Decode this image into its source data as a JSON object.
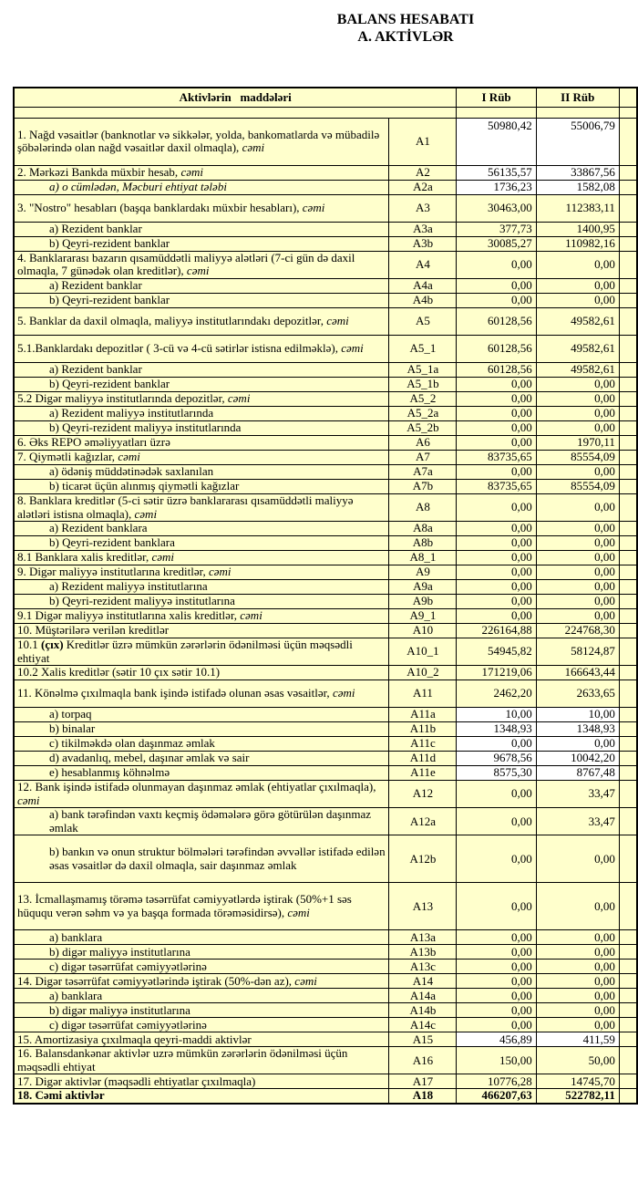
{
  "title": {
    "line1": "BALANS HESABATI",
    "line2": "A. AKTİVLƏR"
  },
  "colors": {
    "cell_bg": "#FFFFCC",
    "value_cell_white": "#FFFFFF",
    "border": "#000000",
    "text": "#000000"
  },
  "table": {
    "header": {
      "items_col": "Aktivlərin   maddələri",
      "q1": "I Rüb",
      "q2": "II Rüb"
    },
    "rows": [
      {
        "code": "A1",
        "q1": "50980,42",
        "q2": "55006,79",
        "h": "h3",
        "white": true,
        "vtop": true,
        "parts": [
          {
            "t": "1. Nağd vəsaitlər (banknotlar və sikkələr, yolda, bankomatlarda və mübadilə şöbələrində olan nağd vəsaitlər daxil olmaqla), "
          },
          {
            "t": "cəmi",
            "s": "i"
          }
        ]
      },
      {
        "code": "A2",
        "q1": "56135,57",
        "q2": "33867,56",
        "white": true,
        "parts": [
          {
            "t": "2. Mərkəzi Bankda müxbir hesab, "
          },
          {
            "t": "cəmi",
            "s": "i"
          }
        ]
      },
      {
        "code": "A2a",
        "q1": "1736,23",
        "q2": "1582,08",
        "white": true,
        "indent": true,
        "parts": [
          {
            "t": "a) o cümlədən, Məcburi ehtiyat tələbi",
            "s": "i"
          }
        ]
      },
      {
        "code": "A3",
        "q1": "30463,00",
        "q2": "112383,11",
        "h": "h2",
        "parts": [
          {
            "t": "3. \"Nostro\" hesabları (başqa banklardakı müxbir hesabları), "
          },
          {
            "t": "cəmi",
            "s": "i"
          }
        ]
      },
      {
        "code": "A3a",
        "q1": "377,73",
        "q2": "1400,95",
        "indent": true,
        "parts": [
          {
            "t": "a) Rezident banklar"
          }
        ]
      },
      {
        "code": "A3b",
        "q1": "30085,27",
        "q2": "110982,16",
        "indent": true,
        "parts": [
          {
            "t": "b) Qeyri-rezident banklar"
          }
        ]
      },
      {
        "code": "A4",
        "q1": "0,00",
        "q2": "0,00",
        "h": "h2",
        "parts": [
          {
            "t": "4. Banklararası bazarın qısamüddətli maliyyə alətləri (7-ci gün də daxil olmaqla, 7 günədək olan kreditlər), "
          },
          {
            "t": "cəmi",
            "s": "i"
          }
        ]
      },
      {
        "code": "A4a",
        "q1": "0,00",
        "q2": "0,00",
        "indent": true,
        "parts": [
          {
            "t": "a) Rezident banklar"
          }
        ]
      },
      {
        "code": "A4b",
        "q1": "0,00",
        "q2": "0,00",
        "indent": true,
        "parts": [
          {
            "t": "b) Qeyri-rezident banklar"
          }
        ]
      },
      {
        "code": "A5",
        "q1": "60128,56",
        "q2": "49582,61",
        "h": "h2",
        "parts": [
          {
            "t": "5. Banklar da daxil olmaqla, maliyyə institutlarındakı depozitlər, "
          },
          {
            "t": "cəmi",
            "s": "i"
          }
        ]
      },
      {
        "code": "A5_1",
        "q1": "60128,56",
        "q2": "49582,61",
        "h": "h2",
        "parts": [
          {
            "t": "5.1.Banklardakı depozitlər ( 3-cü və 4-cü sətirlər istisna edilməklə), "
          },
          {
            "t": "cəmi",
            "s": "i"
          }
        ]
      },
      {
        "code": "A5_1a",
        "q1": "60128,56",
        "q2": "49582,61",
        "indent": true,
        "parts": [
          {
            "t": "a) Rezident banklar"
          }
        ]
      },
      {
        "code": "A5_1b",
        "q1": "0,00",
        "q2": "0,00",
        "indent": true,
        "parts": [
          {
            "t": "b) Qeyri-rezident banklar"
          }
        ]
      },
      {
        "code": "A5_2",
        "q1": "0,00",
        "q2": "0,00",
        "parts": [
          {
            "t": "5.2 Digər maliyyə institutlarında depozitlər, "
          },
          {
            "t": "cəmi",
            "s": "i"
          }
        ]
      },
      {
        "code": "A5_2a",
        "q1": "0,00",
        "q2": "0,00",
        "indent": true,
        "parts": [
          {
            "t": "a) Rezident maliyyə institutlarında"
          }
        ]
      },
      {
        "code": "A5_2b",
        "q1": "0,00",
        "q2": "0,00",
        "indent": true,
        "parts": [
          {
            "t": "b) Qeyri-rezident maliyyə institutlarında"
          }
        ]
      },
      {
        "code": "A6",
        "q1": "0,00",
        "q2": "1970,11",
        "parts": [
          {
            "t": "6. Əks REPO əməliyyatları üzrə"
          }
        ]
      },
      {
        "code": "A7",
        "q1": "83735,65",
        "q2": "85554,09",
        "parts": [
          {
            "t": "7. Qiymətli kağızlar, "
          },
          {
            "t": "cəmi",
            "s": "i"
          }
        ]
      },
      {
        "code": "A7a",
        "q1": "0,00",
        "q2": "0,00",
        "indent": true,
        "parts": [
          {
            "t": "a) ödəniş müddətinədək saxlanılan"
          }
        ]
      },
      {
        "code": "A7b",
        "q1": "83735,65",
        "q2": "85554,09",
        "indent": true,
        "parts": [
          {
            "t": "b) ticarət üçün alınmış qiymətli kağızlar"
          }
        ]
      },
      {
        "code": "A8",
        "q1": "0,00",
        "q2": "0,00",
        "h": "h2",
        "parts": [
          {
            "t": "8. Banklara kreditlər (5-ci sətir üzrə banklararası qısamüddətli maliyyə alətləri istisna olmaqla), "
          },
          {
            "t": "cəmi",
            "s": "i"
          }
        ]
      },
      {
        "code": "A8a",
        "q1": "0,00",
        "q2": "0,00",
        "indent": true,
        "parts": [
          {
            "t": "a) Rezident banklara"
          }
        ]
      },
      {
        "code": "A8b",
        "q1": "0,00",
        "q2": "0,00",
        "indent": true,
        "parts": [
          {
            "t": "b) Qeyri-rezident banklara"
          }
        ]
      },
      {
        "code": "A8_1",
        "q1": "0,00",
        "q2": "0,00",
        "parts": [
          {
            "t": "8.1 Banklara xalis kreditlər, "
          },
          {
            "t": "cəmi",
            "s": "i"
          }
        ]
      },
      {
        "code": "A9",
        "q1": "0,00",
        "q2": "0,00",
        "parts": [
          {
            "t": "9. Digər maliyyə institutlarına kreditlər, "
          },
          {
            "t": "cəmi",
            "s": "i"
          }
        ]
      },
      {
        "code": "A9a",
        "q1": "0,00",
        "q2": "0,00",
        "indent": true,
        "parts": [
          {
            "t": "a) Rezident maliyyə institutlarına"
          }
        ]
      },
      {
        "code": "A9b",
        "q1": "0,00",
        "q2": "0,00",
        "indent": true,
        "parts": [
          {
            "t": "b) Qeyri-rezident maliyyə institutlarına"
          }
        ]
      },
      {
        "code": "A9_1",
        "q1": "0,00",
        "q2": "0,00",
        "parts": [
          {
            "t": "9.1 Digər maliyyə institutlarına xalis kreditlər, "
          },
          {
            "t": "cəmi",
            "s": "i"
          }
        ]
      },
      {
        "code": "A10",
        "q1": "226164,88",
        "q2": "224768,30",
        "parts": [
          {
            "t": "10. Müştərilərə verilən kreditlər"
          }
        ]
      },
      {
        "code": "A10_1",
        "q1": "54945,82",
        "q2": "58124,87",
        "h": "h2",
        "parts": [
          {
            "t": "10.1 "
          },
          {
            "t": "(çıx)",
            "s": "b"
          },
          {
            "t": " Kreditlər üzrə mümkün zərərlərin ödənilməsi üçün məqsədli ehtiyat"
          }
        ]
      },
      {
        "code": "A10_2",
        "q1": "171219,06",
        "q2": "166643,44",
        "parts": [
          {
            "t": "10.2 Xalis kreditlər (sətir 10 çıx sətir 10.1)"
          }
        ]
      },
      {
        "code": "A11",
        "q1": "2462,20",
        "q2": "2633,65",
        "h": "h2",
        "parts": [
          {
            "t": "11. Könəlmə çıxılmaqla bank işində istifadə olunan əsas vəsaitlər, "
          },
          {
            "t": "cəmi",
            "s": "i"
          }
        ]
      },
      {
        "code": "A11a",
        "q1": "10,00",
        "q2": "10,00",
        "white": true,
        "indent": true,
        "parts": [
          {
            "t": "a) torpaq"
          }
        ]
      },
      {
        "code": "A11b",
        "q1": "1348,93",
        "q2": "1348,93",
        "white": true,
        "indent": true,
        "parts": [
          {
            "t": "b) binalar"
          }
        ]
      },
      {
        "code": "A11c",
        "q1": "0,00",
        "q2": "0,00",
        "white": true,
        "indent": true,
        "parts": [
          {
            "t": "c) tikilməkdə olan daşınmaz əmlak"
          }
        ]
      },
      {
        "code": "A11d",
        "q1": "9678,56",
        "q2": "10042,20",
        "white": true,
        "indent": true,
        "parts": [
          {
            "t": "d) avadanlıq, mebel, daşınar əmlak və sair"
          }
        ]
      },
      {
        "code": "A11e",
        "q1": "8575,30",
        "q2": "8767,48",
        "white": true,
        "indent": true,
        "parts": [
          {
            "t": "e) hesablanmış köhnəlmə"
          }
        ]
      },
      {
        "code": "A12",
        "q1": "0,00",
        "q2": "33,47",
        "h": "h2",
        "parts": [
          {
            "t": "12. Bank işində istifadə olunmayan daşınmaz əmlak (ehtiyatlar çıxılmaqla), "
          },
          {
            "t": "cəmi",
            "s": "i"
          }
        ]
      },
      {
        "code": "A12a",
        "q1": "0,00",
        "q2": "33,47",
        "h": "h2",
        "indent": true,
        "parts": [
          {
            "t": "a) bank tərəfindən vaxtı keçmiş ödəmələrə görə götürülən daşınmaz əmlak"
          }
        ]
      },
      {
        "code": "A12b",
        "q1": "0,00",
        "q2": "0,00",
        "h": "h3",
        "indent": true,
        "parts": [
          {
            "t": "b) bankın və onun struktur bölmələri tərəfindən əvvəllər istifadə edilən əsas vəsaitlər də daxil olmaqla, sair daşınmaz əmlak"
          }
        ]
      },
      {
        "code": "A13",
        "q1": "0,00",
        "q2": "0,00",
        "h": "h3",
        "parts": [
          {
            "t": "13. İcmallaşmamış törəmə təsərrüfat cəmiyyətlərdə iştirak (50%+1 səs hüququ verən səhm və ya başqa formada törəməsidirsə), "
          },
          {
            "t": "cəmi",
            "s": "i"
          }
        ]
      },
      {
        "code": "A13a",
        "q1": "0,00",
        "q2": "0,00",
        "indent": true,
        "parts": [
          {
            "t": "a) banklara"
          }
        ]
      },
      {
        "code": "A13b",
        "q1": "0,00",
        "q2": "0,00",
        "indent": true,
        "parts": [
          {
            "t": "b) digər maliyyə institutlarına"
          }
        ]
      },
      {
        "code": "A13c",
        "q1": "0,00",
        "q2": "0,00",
        "indent": true,
        "parts": [
          {
            "t": "c) digər təsərrüfat cəmiyyətlərinə"
          }
        ]
      },
      {
        "code": "A14",
        "q1": "0,00",
        "q2": "0,00",
        "parts": [
          {
            "t": "14. Digər təsərrüfat cəmiyyətlərində iştirak (50%-dən az), "
          },
          {
            "t": "cəmi",
            "s": "i"
          }
        ]
      },
      {
        "code": "A14a",
        "q1": "0,00",
        "q2": "0,00",
        "indent": true,
        "parts": [
          {
            "t": "a) banklara"
          }
        ]
      },
      {
        "code": "A14b",
        "q1": "0,00",
        "q2": "0,00",
        "indent": true,
        "parts": [
          {
            "t": "b) digər maliyyə institutlarına"
          }
        ]
      },
      {
        "code": "A14c",
        "q1": "0,00",
        "q2": "0,00",
        "indent": true,
        "parts": [
          {
            "t": "c) digər təsərrüfat cəmiyyətlərinə"
          }
        ]
      },
      {
        "code": "A15",
        "q1": "456,89",
        "q2": "411,59",
        "white": true,
        "parts": [
          {
            "t": "15. Amortizasiya çıxılmaqla qeyri-maddi aktivlər"
          }
        ]
      },
      {
        "code": "A16",
        "q1": "150,00",
        "q2": "50,00",
        "h": "h2",
        "parts": [
          {
            "t": "16. Balansdankənar aktivlər uzrə mümkün zərərlərin ödənilməsi üçün məqsədli ehtiyat"
          }
        ]
      },
      {
        "code": "A17",
        "q1": "10776,28",
        "q2": "14745,70",
        "parts": [
          {
            "t": "17. Digər aktivlər (məqsədli ehtiyatlar çıxılmaqla)"
          }
        ]
      },
      {
        "code": "A18",
        "q1": "466207,63",
        "q2": "522782,11",
        "bold": true,
        "parts": [
          {
            "t": "18. Cəmi aktivlər"
          }
        ]
      }
    ]
  }
}
